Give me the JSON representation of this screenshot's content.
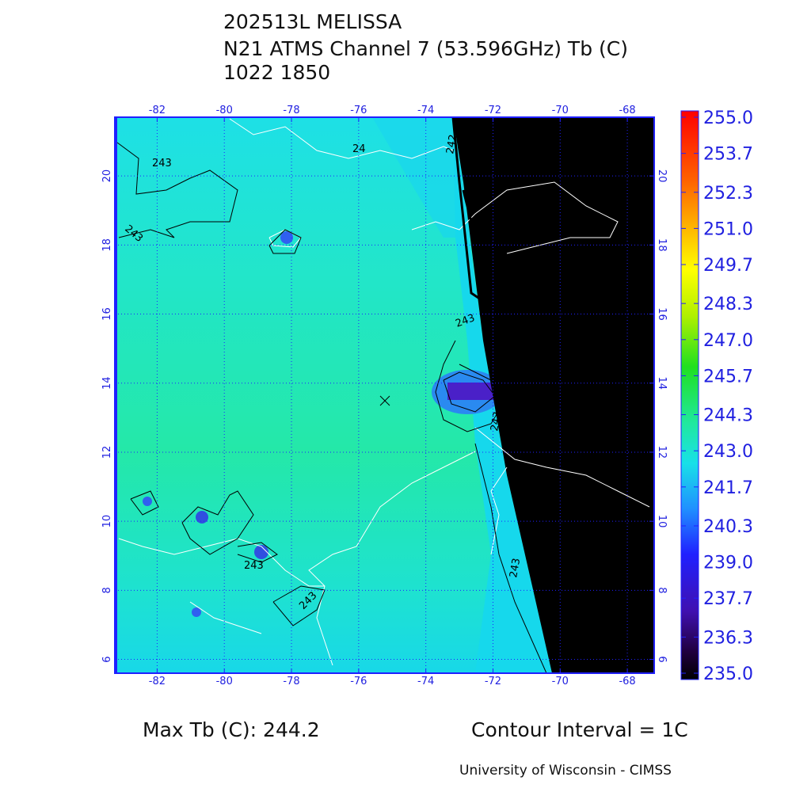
{
  "title": [
    "202513L MELISSA",
    "N21 ATMS Channel 7 (53.596GHz) Tb (C)",
    "1022 1850"
  ],
  "map": {
    "xlim": [
      -83.26,
      -67.2
    ],
    "ylim": [
      5.6,
      21.7
    ],
    "lon_ticks": [
      -82,
      -80,
      -78,
      -76,
      -74,
      -72,
      -70,
      -68
    ],
    "lat_ticks": [
      6,
      8,
      10,
      12,
      14,
      16,
      18,
      20
    ],
    "contour_labels": [
      "243",
      "243",
      "24",
      "242",
      "243",
      "243",
      "243",
      "243",
      "243"
    ]
  },
  "colorbar": {
    "lim": [
      235,
      255
    ],
    "ticks": [
      {
        "value": 255,
        "label": "255.0"
      },
      {
        "value": 253.7,
        "label": "253.7"
      },
      {
        "value": 252.3,
        "label": "252.3"
      },
      {
        "value": 251,
        "label": "251.0"
      },
      {
        "value": 249.7,
        "label": "249.7"
      },
      {
        "value": 248.3,
        "label": "248.3"
      },
      {
        "value": 247,
        "label": "247.0"
      },
      {
        "value": 245.7,
        "label": "245.7"
      },
      {
        "value": 244.3,
        "label": "244.3"
      },
      {
        "value": 243,
        "label": "243.0"
      },
      {
        "value": 241.7,
        "label": "241.7"
      },
      {
        "value": 240.3,
        "label": "240.3"
      },
      {
        "value": 239,
        "label": "239.0"
      },
      {
        "value": 237.7,
        "label": "237.7"
      },
      {
        "value": 236.3,
        "label": "236.3"
      },
      {
        "value": 235,
        "label": "235.0"
      }
    ]
  },
  "footer": {
    "max_tb": "Max Tb (C): 244.2",
    "contour_interval": "Contour Interval = 1C",
    "credit": "University of Wisconsin - CIMSS"
  }
}
